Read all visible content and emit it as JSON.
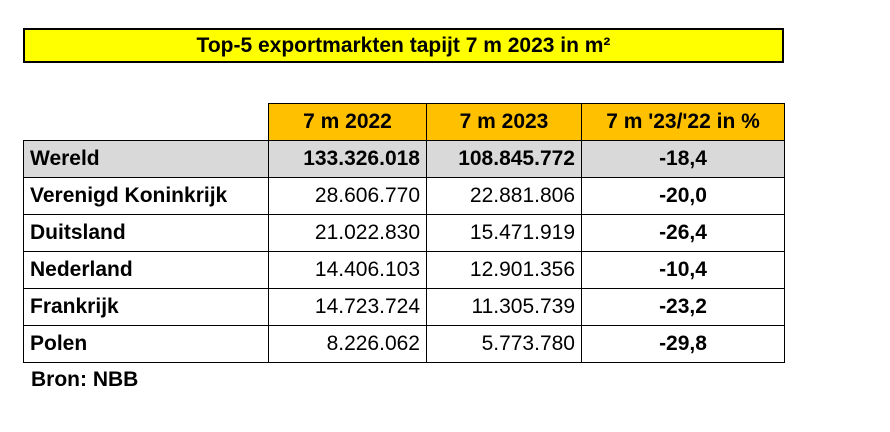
{
  "title": "Top-5 exportmarkten tapijt 7 m 2023 in m²",
  "table": {
    "headers": [
      "7 m 2022",
      "7 m 2023",
      "7 m '23/'22 in %"
    ],
    "rows": [
      {
        "country": "Wereld",
        "v2022": "133.326.018",
        "v2023": "108.845.772",
        "pct": "-18,4"
      },
      {
        "country": "Verenigd Koninkrijk",
        "v2022": "28.606.770",
        "v2023": "22.881.806",
        "pct": "-20,0"
      },
      {
        "country": "Duitsland",
        "v2022": "21.022.830",
        "v2023": "15.471.919",
        "pct": "-26,4"
      },
      {
        "country": "Nederland",
        "v2022": "14.406.103",
        "v2023": "12.901.356",
        "pct": "-10,4"
      },
      {
        "country": "Frankrijk",
        "v2022": "14.723.724",
        "v2023": "11.305.739",
        "pct": "-23,2"
      },
      {
        "country": "Polen",
        "v2022": "8.226.062",
        "v2023": "5.773.780",
        "pct": "-29,8"
      }
    ]
  },
  "source": "Bron: NBB",
  "colors": {
    "title_bg": "#ffff00",
    "header_bg": "#ffc000",
    "total_row_bg": "#d9d9d9"
  }
}
